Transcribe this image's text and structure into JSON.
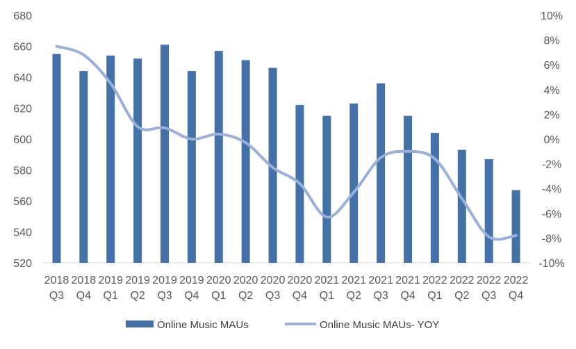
{
  "chart_data": {
    "type": "bar",
    "categories": [
      [
        "2018",
        "Q3"
      ],
      [
        "2018",
        "Q4"
      ],
      [
        "2019",
        "Q1"
      ],
      [
        "2019",
        "Q2"
      ],
      [
        "2019",
        "Q3"
      ],
      [
        "2019",
        "Q4"
      ],
      [
        "2020",
        "Q1"
      ],
      [
        "2020",
        "Q2"
      ],
      [
        "2020",
        "Q3"
      ],
      [
        "2020",
        "Q4"
      ],
      [
        "2021",
        "Q1"
      ],
      [
        "2021",
        "Q2"
      ],
      [
        "2021",
        "Q3"
      ],
      [
        "2021",
        "Q4"
      ],
      [
        "2022",
        "Q1"
      ],
      [
        "2022",
        "Q2"
      ],
      [
        "2022",
        "Q3"
      ],
      [
        "2022",
        "Q4"
      ]
    ],
    "series": [
      {
        "name": "Online Music  MAUs",
        "kind": "bar",
        "axis": "left",
        "color": "#4472A8",
        "values": [
          655,
          644,
          654,
          652,
          661,
          644,
          657,
          651,
          646,
          622,
          615,
          623,
          636,
          615,
          604,
          593,
          587,
          567
        ]
      },
      {
        "name": "Online Music  MAUs- YOY",
        "kind": "line",
        "axis": "right",
        "color": "#9AAFD9",
        "values": [
          7.5,
          6.8,
          4.5,
          1.0,
          0.9,
          0.0,
          0.4,
          -0.3,
          -2.3,
          -3.6,
          -6.3,
          -4.3,
          -1.5,
          -1.0,
          -1.6,
          -4.8,
          -7.9,
          -7.8
        ]
      }
    ],
    "y_left": {
      "min": 520,
      "max": 680,
      "ticks": [
        "520",
        "540",
        "560",
        "580",
        "600",
        "620",
        "640",
        "660",
        "680"
      ]
    },
    "y_right": {
      "min": -10,
      "max": 10,
      "ticks": [
        "-10%",
        "-8%",
        "-6%",
        "-4%",
        "-2%",
        "0%",
        "2%",
        "4%",
        "6%",
        "8%",
        "10%"
      ]
    },
    "grid": false,
    "legend": "bottom-center",
    "legend_labels": [
      "Online Music  MAUs",
      "Online Music  MAUs- YOY"
    ]
  }
}
